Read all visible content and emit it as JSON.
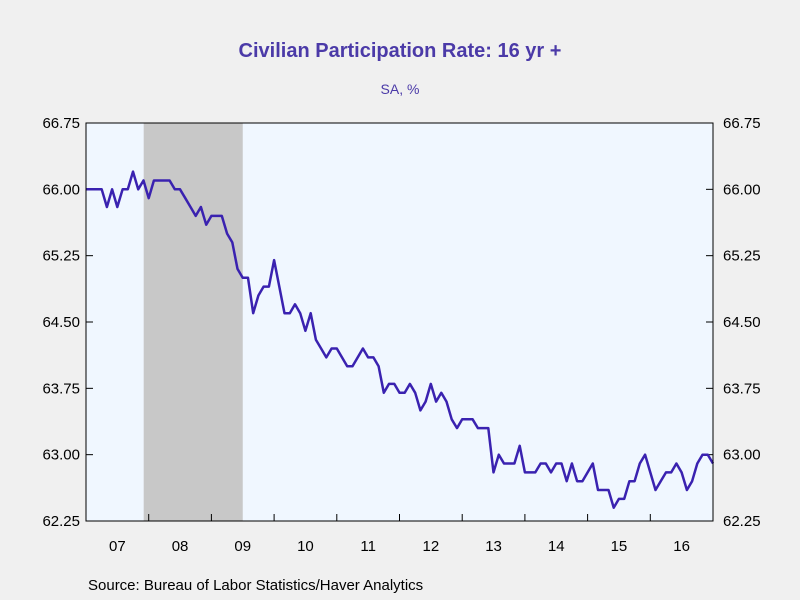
{
  "chart_data": {
    "type": "line",
    "title": "Civilian Participation Rate: 16 yr +",
    "subtitle": "SA, %",
    "source": "Source:  Bureau of Labor Statistics/Haver Analytics",
    "ylim": [
      62.25,
      66.75
    ],
    "x_range": [
      2007.0,
      2017.0
    ],
    "yticks": [
      "62.25",
      "63.00",
      "63.75",
      "64.50",
      "65.25",
      "66.00",
      "66.75"
    ],
    "xticks": [
      "07",
      "08",
      "09",
      "10",
      "11",
      "12",
      "13",
      "14",
      "15",
      "16"
    ],
    "grid": false,
    "recession_shading": {
      "start": 2007.92,
      "end": 2009.5,
      "color": "#c8c8c8"
    },
    "colors": {
      "line": "#3a22b0",
      "plot_bg": "#f0f7ff",
      "frame": "#000000"
    },
    "series": [
      {
        "start": 2007.0,
        "step": 0.08333,
        "values": [
          66.0,
          66.0,
          66.0,
          66.0,
          65.8,
          66.0,
          65.8,
          66.0,
          66.0,
          66.2,
          66.0,
          66.1,
          65.9,
          66.1,
          66.1,
          66.1,
          66.1,
          66.0,
          66.0,
          65.9,
          65.8,
          65.7,
          65.8,
          65.6,
          65.7,
          65.7,
          65.7,
          65.5,
          65.4,
          65.1,
          65.0,
          65.0,
          64.6,
          64.8,
          64.9,
          64.9,
          65.2,
          64.9,
          64.6,
          64.6,
          64.7,
          64.6,
          64.4,
          64.6,
          64.3,
          64.2,
          64.1,
          64.2,
          64.2,
          64.1,
          64.0,
          64.0,
          64.1,
          64.2,
          64.1,
          64.1,
          64.0,
          63.7,
          63.8,
          63.8,
          63.7,
          63.7,
          63.8,
          63.7,
          63.5,
          63.6,
          63.8,
          63.6,
          63.7,
          63.6,
          63.4,
          63.3,
          63.4,
          63.4,
          63.4,
          63.3,
          63.3,
          63.3,
          62.8,
          63.0,
          62.9,
          62.9,
          62.9,
          63.1,
          62.8,
          62.8,
          62.8,
          62.9,
          62.9,
          62.8,
          62.9,
          62.9,
          62.7,
          62.9,
          62.7,
          62.7,
          62.8,
          62.9,
          62.6,
          62.6,
          62.6,
          62.4,
          62.5,
          62.5,
          62.7,
          62.7,
          62.9,
          63.0,
          62.8,
          62.6,
          62.7,
          62.8,
          62.8,
          62.9,
          62.8,
          62.6,
          62.7,
          62.9,
          63.0,
          63.0,
          62.9
        ]
      }
    ]
  }
}
